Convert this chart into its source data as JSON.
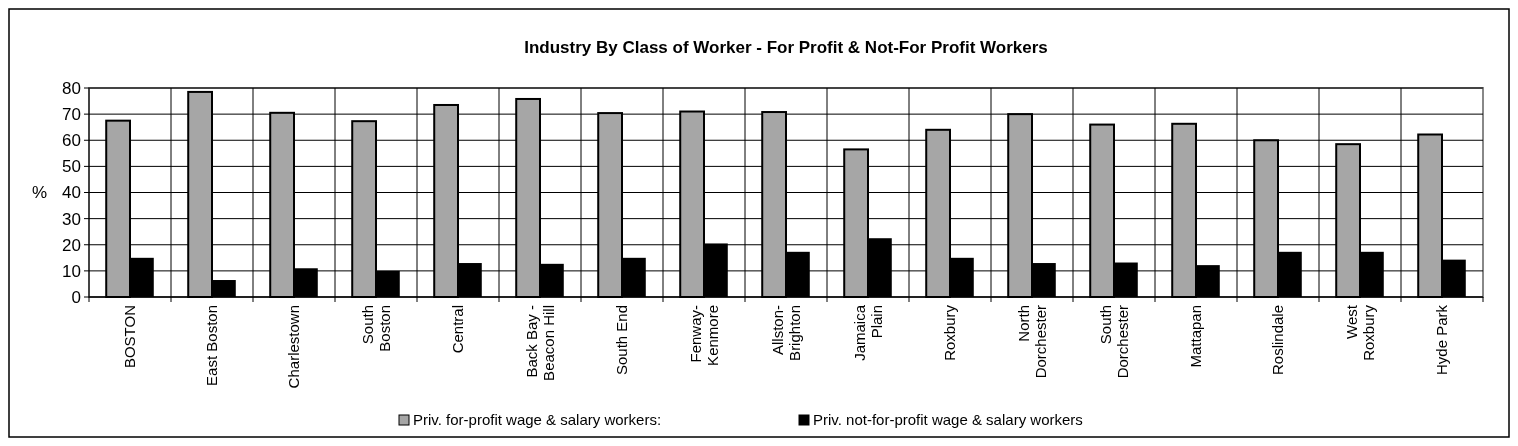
{
  "chart_data": {
    "type": "bar",
    "title": "Industry By Class of Worker - For Profit & Not-For Profit Workers",
    "ylabel": "%",
    "categories": [
      "BOSTON",
      "East Boston",
      "Charlestown",
      "South\nBoston",
      "Central",
      "Back Bay -\nBeacon Hill",
      "South End",
      "Fenway-\nKenmore",
      "Allston-\nBrighton",
      "Jamaica\nPlain",
      "Roxbury",
      "North\nDorchester",
      "South\nDorchester",
      "Mattapan",
      "Roslindale",
      "West\nRoxbury",
      "Hyde Park"
    ],
    "series": [
      {
        "name": "Priv. for-profit wage & salary workers:",
        "color": "#a6a6a6",
        "values": [
          67.5,
          78.5,
          70.5,
          67.3,
          73.5,
          75.8,
          70.4,
          71,
          70.8,
          56.5,
          64,
          70,
          66,
          66.3,
          60,
          58.5,
          62.2
        ]
      },
      {
        "name": "Priv. not-for-profit wage & salary workers",
        "color": "#000000",
        "values": [
          15,
          6.5,
          11,
          10,
          13,
          12.7,
          15,
          20.5,
          17.3,
          22.5,
          15,
          13,
          13.2,
          12.2,
          17.3,
          17.3,
          14.3
        ]
      }
    ],
    "ylim": [
      0,
      80
    ],
    "yticks": [
      0,
      10,
      20,
      30,
      40,
      50,
      60,
      70,
      80
    ],
    "grid": true,
    "legend": "bottom"
  }
}
